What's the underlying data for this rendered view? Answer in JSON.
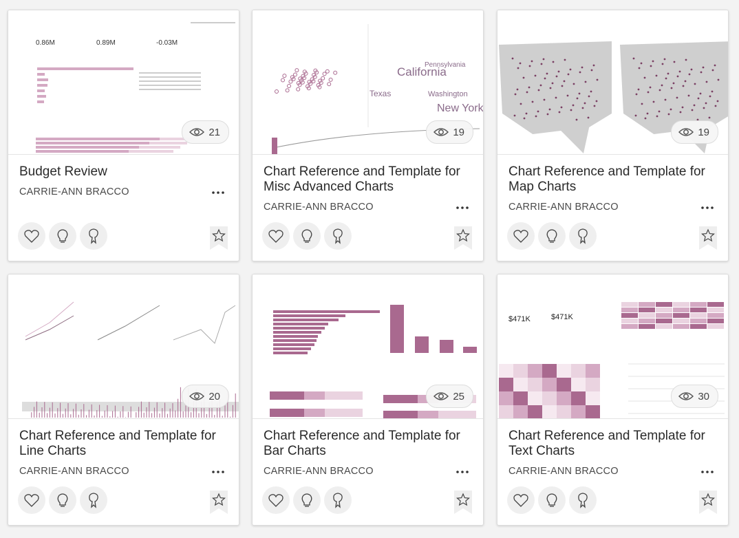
{
  "cards": [
    {
      "title": "Budget Review",
      "author": "CARRIE-ANN BRACCO",
      "views": 21,
      "thumbnail_labels": [
        "0.86M",
        "0.89M",
        "-0.03M"
      ]
    },
    {
      "title": "Chart Reference and Template for Misc Advanced Charts",
      "author": "CARRIE-ANN BRACCO",
      "views": 19,
      "thumbnail_labels": [
        "California",
        "Pennsylvania",
        "Texas",
        "Washington",
        "New York"
      ]
    },
    {
      "title": "Chart Reference and Template for Map Charts",
      "author": "CARRIE-ANN BRACCO",
      "views": 19
    },
    {
      "title": "Chart Reference and Template for Line Charts",
      "author": "CARRIE-ANN BRACCO",
      "views": 20
    },
    {
      "title": "Chart Reference and Template for Bar Charts",
      "author": "CARRIE-ANN BRACCO",
      "views": 25
    },
    {
      "title": "Chart Reference and Template for Text Charts",
      "author": "CARRIE-ANN BRACCO",
      "views": 30,
      "thumbnail_labels": [
        "$471K",
        "$471K"
      ]
    }
  ]
}
